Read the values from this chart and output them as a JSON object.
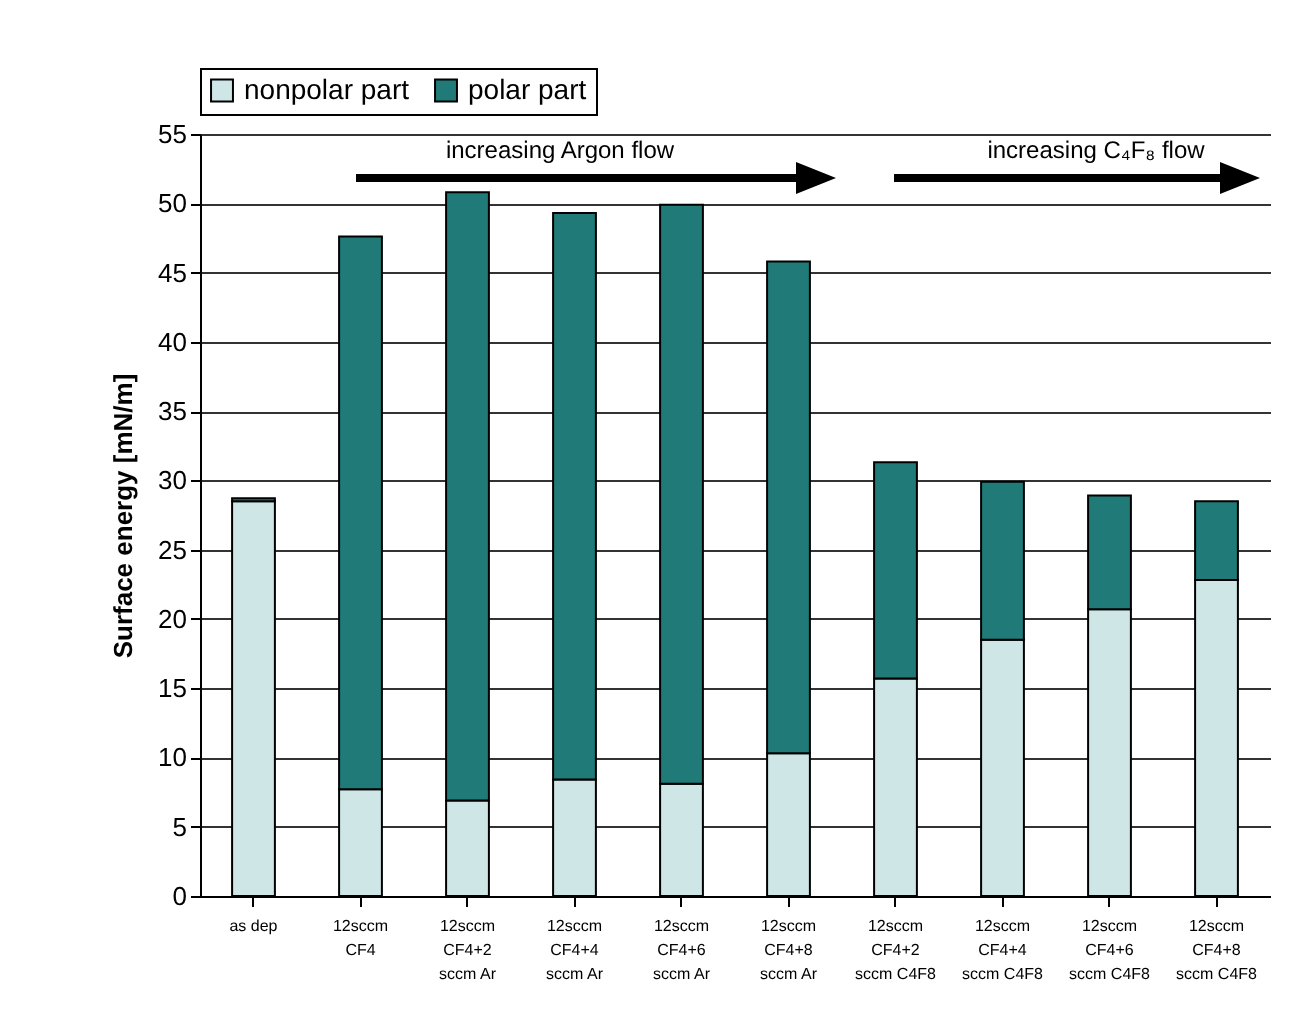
{
  "chart_data": {
    "type": "bar",
    "stacked": true,
    "ylabel": "Surface energy [mN/m]",
    "categories": [
      "as dep",
      "12sccm\nCF4",
      "12sccm\nCF4+2\nsccm Ar",
      "12sccm\nCF4+4\nsccm Ar",
      "12sccm\nCF4+6\nsccm Ar",
      "12sccm\nCF4+8\nsccm Ar",
      "12sccm\nCF4+2\nsccm C4F8",
      "12sccm\nCF4+4\nsccm C4F8",
      "12sccm\nCF4+6\nsccm C4F8",
      "12sccm\nCF4+8\nsccm C4F8"
    ],
    "series": [
      {
        "name": "nonpolar part",
        "color": "#cfe6e6",
        "values": [
          28.5,
          7.7,
          6.9,
          8.4,
          8.1,
          10.3,
          15.7,
          18.5,
          20.7,
          22.8
        ]
      },
      {
        "name": "polar part",
        "color": "#1f7a78",
        "values": [
          0.2,
          39.9,
          43.9,
          40.9,
          41.8,
          35.5,
          15.6,
          11.4,
          8.2,
          5.7
        ]
      }
    ],
    "ylim": [
      0,
      55
    ],
    "yticks": [
      0,
      5,
      10,
      15,
      20,
      25,
      30,
      35,
      40,
      45,
      50,
      55
    ],
    "grid": "y",
    "legend": "top",
    "annotations": [
      "increasing Argon flow",
      "increasing C₄F₈ flow"
    ]
  }
}
